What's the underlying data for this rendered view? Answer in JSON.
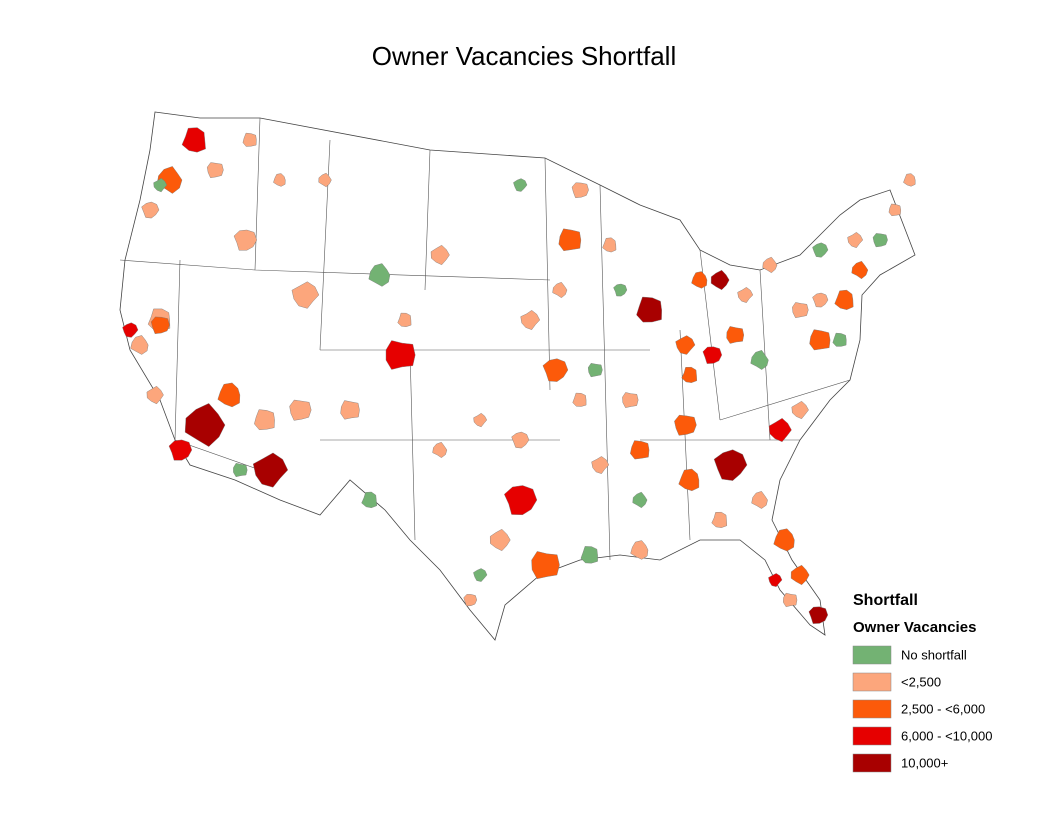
{
  "title": "Owner Vacancies Shortfall",
  "legend": {
    "title": "Shortfall",
    "subtitle": "Owner Vacancies",
    "items": [
      {
        "label": "No shortfall",
        "color": "#73b273"
      },
      {
        "label": "<2,500",
        "color": "#fca67c"
      },
      {
        "label": "2,500 - <6,000",
        "color": "#fc5a0a"
      },
      {
        "label": "6,000 - <10,000",
        "color": "#e60000"
      },
      {
        "label": "10,000+",
        "color": "#a80000"
      }
    ]
  }
}
